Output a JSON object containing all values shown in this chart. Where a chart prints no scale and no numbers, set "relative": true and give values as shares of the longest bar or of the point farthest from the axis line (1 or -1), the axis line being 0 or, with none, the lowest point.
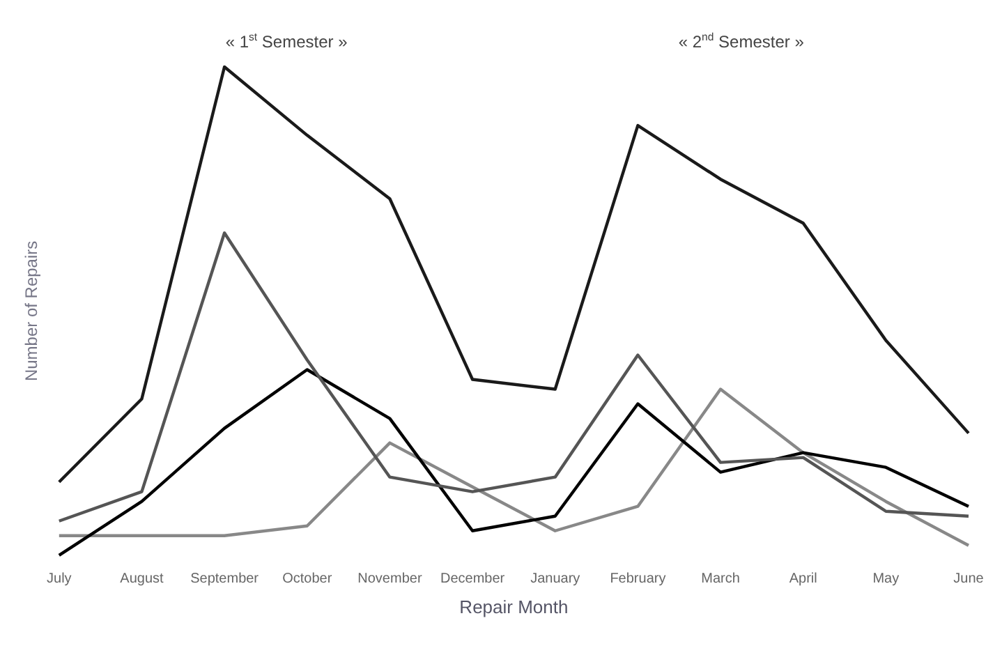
{
  "chart_data": {
    "type": "line",
    "relative": true,
    "xlabel": "Repair Month",
    "ylabel": "Number of Repairs",
    "categories": [
      "July",
      "August",
      "September",
      "October",
      "November",
      "December",
      "January",
      "February",
      "March",
      "April",
      "May",
      "June"
    ],
    "annotations": [
      "« 1$^{st}$ Semester »",
      "« 2$^{nd}$ Semester »"
    ],
    "series": [
      {
        "color": "#1a1a1a",
        "values": [
          0.15,
          0.32,
          1,
          0.86,
          0.73,
          0.36,
          0.34,
          0.88,
          0.77,
          0.68,
          0.44,
          0.25
        ]
      },
      {
        "color": "#555555",
        "values": [
          0.07,
          0.13,
          0.66,
          0.4,
          0.16,
          0.13,
          0.16,
          0.41,
          0.19,
          0.2,
          0.09,
          0.08
        ]
      },
      {
        "color": "#000000",
        "values": [
          0,
          0.11,
          0.26,
          0.38,
          0.28,
          0.05,
          0.08,
          0.31,
          0.17,
          0.21,
          0.18,
          0.1
        ]
      },
      {
        "color": "#888888",
        "values": [
          0.04,
          0.04,
          0.04,
          0.06,
          0.23,
          0.14,
          0.05,
          0.1,
          0.34,
          0.21,
          0.11,
          0.02
        ]
      }
    ],
    "grid": false,
    "legend": false,
    "marker": "none",
    "line_style": "solid"
  }
}
